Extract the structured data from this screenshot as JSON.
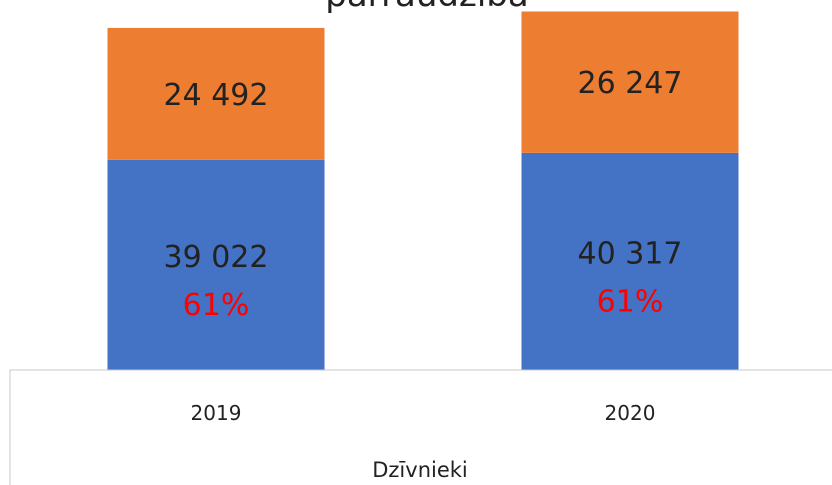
{
  "chart_data": {
    "type": "stacked-bar",
    "title": "pārraudzība",
    "x_label": "Dzīvnieki",
    "categories": [
      "2019",
      "2020"
    ],
    "series": [
      {
        "color": "#4472c4",
        "values": [
          39022,
          40317
        ],
        "value_labels": [
          "39 022",
          "40 317"
        ]
      },
      {
        "color": "#ed7d31",
        "values": [
          24492,
          26247
        ],
        "value_labels": [
          "24 492",
          "26 247"
        ]
      }
    ],
    "shares": {
      "color": "#ff0000",
      "values": [
        61,
        61
      ],
      "value_labels": [
        "61%",
        "61%"
      ]
    },
    "ylim": [
      0,
      70000
    ]
  }
}
